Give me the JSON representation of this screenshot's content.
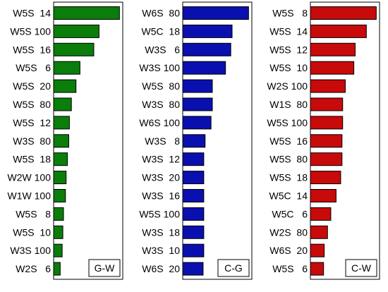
{
  "chart_data": [
    {
      "type": "bar",
      "orientation": "horizontal",
      "panel_label": "G-W",
      "color": "#0a7d0a",
      "categories": [
        "W5S  14",
        "W5S 100",
        "W5S  16",
        "W5S   6",
        "W5S  20",
        "W5S  80",
        "W5S  12",
        "W3S  80",
        "W5S  18",
        "W2W 100",
        "W1W 100",
        "W5S   8",
        "W5S  10",
        "W3S 100",
        "W2S   6"
      ],
      "values": [
        100,
        69,
        61,
        40,
        34,
        27,
        24,
        23,
        21,
        19,
        18,
        15,
        14,
        13,
        10
      ],
      "xlim": [
        0,
        105
      ]
    },
    {
      "type": "bar",
      "orientation": "horizontal",
      "panel_label": "C-G",
      "color": "#0a10b0",
      "categories": [
        "W6S  80",
        "W5C  18",
        "W3S   6",
        "W3S 100",
        "W5S  80",
        "W3S  80",
        "W6S 100",
        "W3S   8",
        "W3S  12",
        "W3S  20",
        "W3S  16",
        "W5S 100",
        "W3S  18",
        "W3S  10",
        "W6S  20"
      ],
      "values": [
        100,
        75,
        73,
        65,
        45,
        45,
        43,
        34,
        32,
        32,
        32,
        32,
        32,
        32,
        31
      ],
      "xlim": [
        0,
        105
      ]
    },
    {
      "type": "bar",
      "orientation": "horizontal",
      "panel_label": "C-W",
      "color": "#c80a0a",
      "categories": [
        "W5S   8",
        "W5S  14",
        "W5S  12",
        "W5S  10",
        "W2S 100",
        "W1S  80",
        "W5S 100",
        "W5S  16",
        "W5S  80",
        "W5S  18",
        "W5C  14",
        "W5C   6",
        "W2S  80",
        "W6S  20",
        "W5S   6"
      ],
      "values": [
        100,
        85,
        68,
        66,
        53,
        49,
        49,
        48,
        48,
        46,
        39,
        31,
        26,
        21,
        20
      ],
      "xlim": [
        0,
        105
      ]
    }
  ]
}
